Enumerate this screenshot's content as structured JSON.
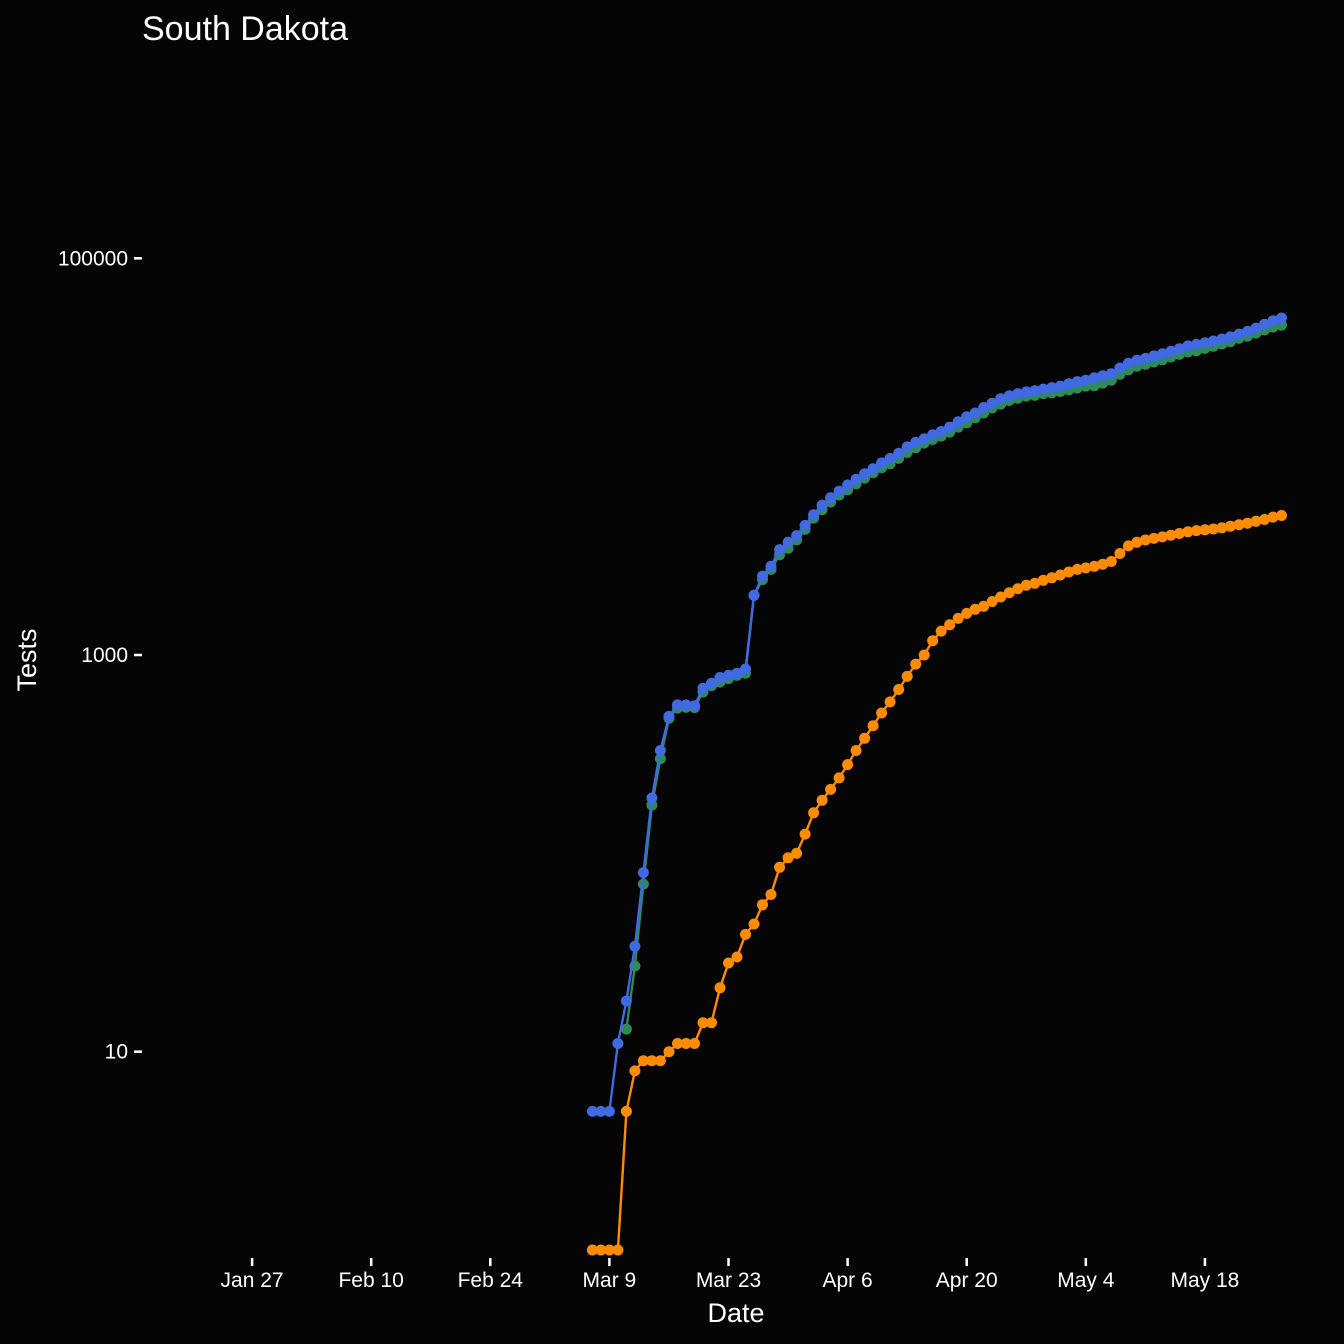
{
  "chart_data": {
    "type": "line",
    "title": "South Dakota",
    "xlabel": "Date",
    "ylabel": "Tests",
    "y_scale": "log",
    "ylim": [
      1,
      1000000
    ],
    "xlim": [
      "2020-01-15",
      "2020-05-28"
    ],
    "grid": false,
    "legend": "none",
    "x_ticks": [
      {
        "date": "2020-01-27",
        "label": "Jan 27"
      },
      {
        "date": "2020-02-10",
        "label": "Feb 10"
      },
      {
        "date": "2020-02-24",
        "label": "Feb 24"
      },
      {
        "date": "2020-03-09",
        "label": "Mar  9"
      },
      {
        "date": "2020-03-23",
        "label": "Mar 23"
      },
      {
        "date": "2020-04-06",
        "label": "Apr  6"
      },
      {
        "date": "2020-04-20",
        "label": "Apr 20"
      },
      {
        "date": "2020-05-04",
        "label": "May  4"
      },
      {
        "date": "2020-05-18",
        "label": "May 18"
      }
    ],
    "y_ticks": [
      {
        "value": 10,
        "label": "10"
      },
      {
        "value": 1000,
        "label": "1000"
      },
      {
        "value": 100000,
        "label": "100000"
      }
    ],
    "series": [
      {
        "color": "#2e8b57",
        "x": [
          "2020-03-11",
          "2020-03-12",
          "2020-03-13",
          "2020-03-14",
          "2020-03-15",
          "2020-03-16",
          "2020-03-17",
          "2020-03-18",
          "2020-03-19",
          "2020-03-20",
          "2020-03-21",
          "2020-03-22",
          "2020-03-23",
          "2020-03-24",
          "2020-03-25",
          "2020-03-26",
          "2020-03-27",
          "2020-03-28",
          "2020-03-29",
          "2020-03-30",
          "2020-03-31",
          "2020-04-01",
          "2020-04-02",
          "2020-04-03",
          "2020-04-04",
          "2020-04-05",
          "2020-04-06",
          "2020-04-07",
          "2020-04-08",
          "2020-04-09",
          "2020-04-10",
          "2020-04-11",
          "2020-04-12",
          "2020-04-13",
          "2020-04-14",
          "2020-04-15",
          "2020-04-16",
          "2020-04-17",
          "2020-04-18",
          "2020-04-19",
          "2020-04-20",
          "2020-04-21",
          "2020-04-22",
          "2020-04-23",
          "2020-04-24",
          "2020-04-25",
          "2020-04-26",
          "2020-04-27",
          "2020-04-28",
          "2020-04-29",
          "2020-04-30",
          "2020-05-01",
          "2020-05-02",
          "2020-05-03",
          "2020-05-04",
          "2020-05-05",
          "2020-05-06",
          "2020-05-07",
          "2020-05-08",
          "2020-05-09",
          "2020-05-10",
          "2020-05-11",
          "2020-05-12",
          "2020-05-13",
          "2020-05-14",
          "2020-05-15",
          "2020-05-16",
          "2020-05-17",
          "2020-05-18",
          "2020-05-19",
          "2020-05-20",
          "2020-05-21",
          "2020-05-22",
          "2020-05-23",
          "2020-05-24",
          "2020-05-25",
          "2020-05-26",
          "2020-05-27"
        ],
        "values": [
          13,
          27,
          70,
          175,
          300,
          480,
          540,
          545,
          543,
          650,
          700,
          730,
          760,
          790,
          810,
          2000,
          2400,
          2700,
          3200,
          3450,
          3800,
          4300,
          4900,
          5400,
          5900,
          6400,
          6800,
          7300,
          7800,
          8300,
          8800,
          9200,
          9800,
          10500,
          11100,
          11700,
          12200,
          12700,
          13300,
          14100,
          14800,
          15700,
          16600,
          17600,
          18400,
          19200,
          19700,
          20200,
          20400,
          20800,
          21000,
          21300,
          21700,
          22200,
          22700,
          22800,
          23500,
          24300,
          26000,
          27400,
          28600,
          29200,
          30000,
          30800,
          31800,
          32800,
          33700,
          34200,
          35200,
          36000,
          37000,
          38000,
          39500,
          40500,
          42000,
          43500,
          45000,
          46000
        ]
      },
      {
        "color": "#4169e1",
        "x": [
          "2020-03-07",
          "2020-03-08",
          "2020-03-09",
          "2020-03-10",
          "2020-03-11",
          "2020-03-12",
          "2020-03-13",
          "2020-03-14",
          "2020-03-15",
          "2020-03-16",
          "2020-03-17",
          "2020-03-18",
          "2020-03-19",
          "2020-03-20",
          "2020-03-21",
          "2020-03-22",
          "2020-03-23",
          "2020-03-24",
          "2020-03-25",
          "2020-03-26",
          "2020-03-27",
          "2020-03-28",
          "2020-03-29",
          "2020-03-30",
          "2020-03-31",
          "2020-04-01",
          "2020-04-02",
          "2020-04-03",
          "2020-04-04",
          "2020-04-05",
          "2020-04-06",
          "2020-04-07",
          "2020-04-08",
          "2020-04-09",
          "2020-04-10",
          "2020-04-11",
          "2020-04-12",
          "2020-04-13",
          "2020-04-14",
          "2020-04-15",
          "2020-04-16",
          "2020-04-17",
          "2020-04-18",
          "2020-04-19",
          "2020-04-20",
          "2020-04-21",
          "2020-04-22",
          "2020-04-23",
          "2020-04-24",
          "2020-04-25",
          "2020-04-26",
          "2020-04-27",
          "2020-04-28",
          "2020-04-29",
          "2020-04-30",
          "2020-05-01",
          "2020-05-02",
          "2020-05-03",
          "2020-05-04",
          "2020-05-05",
          "2020-05-06",
          "2020-05-07",
          "2020-05-08",
          "2020-05-09",
          "2020-05-10",
          "2020-05-11",
          "2020-05-12",
          "2020-05-13",
          "2020-05-14",
          "2020-05-15",
          "2020-05-16",
          "2020-05-17",
          "2020-05-18",
          "2020-05-19",
          "2020-05-20",
          "2020-05-21",
          "2020-05-22",
          "2020-05-23",
          "2020-05-24",
          "2020-05-25",
          "2020-05-26",
          "2020-05-27"
        ],
        "values": [
          5,
          5,
          5,
          11,
          18,
          34,
          80,
          190,
          330,
          490,
          560,
          560,
          555,
          680,
          720,
          770,
          790,
          810,
          850,
          2000,
          2500,
          2800,
          3400,
          3700,
          4000,
          4500,
          5100,
          5700,
          6200,
          6700,
          7200,
          7700,
          8200,
          8700,
          9300,
          9800,
          10400,
          11200,
          11800,
          12300,
          12900,
          13400,
          14100,
          15000,
          15900,
          16600,
          17700,
          18600,
          19600,
          20300,
          20800,
          21200,
          21500,
          21900,
          22300,
          22700,
          23300,
          23900,
          24300,
          25000,
          25600,
          26200,
          28000,
          29600,
          30600,
          31300,
          32200,
          33000,
          34000,
          35000,
          36200,
          36800,
          37500,
          38300,
          39200,
          40200,
          41500,
          42800,
          44500,
          46500,
          48500,
          50000
        ]
      },
      {
        "color": "#ff8c00",
        "x": [
          "2020-03-07",
          "2020-03-08",
          "2020-03-09",
          "2020-03-10",
          "2020-03-11",
          "2020-03-12",
          "2020-03-13",
          "2020-03-14",
          "2020-03-15",
          "2020-03-16",
          "2020-03-17",
          "2020-03-18",
          "2020-03-19",
          "2020-03-20",
          "2020-03-21",
          "2020-03-22",
          "2020-03-23",
          "2020-03-24",
          "2020-03-25",
          "2020-03-26",
          "2020-03-27",
          "2020-03-28",
          "2020-03-29",
          "2020-03-30",
          "2020-03-31",
          "2020-04-01",
          "2020-04-02",
          "2020-04-03",
          "2020-04-04",
          "2020-04-05",
          "2020-04-06",
          "2020-04-07",
          "2020-04-08",
          "2020-04-09",
          "2020-04-10",
          "2020-04-11",
          "2020-04-12",
          "2020-04-13",
          "2020-04-14",
          "2020-04-15",
          "2020-04-16",
          "2020-04-17",
          "2020-04-18",
          "2020-04-19",
          "2020-04-20",
          "2020-04-21",
          "2020-04-22",
          "2020-04-23",
          "2020-04-24",
          "2020-04-25",
          "2020-04-26",
          "2020-04-27",
          "2020-04-28",
          "2020-04-29",
          "2020-04-30",
          "2020-05-01",
          "2020-05-02",
          "2020-05-03",
          "2020-05-04",
          "2020-05-05",
          "2020-05-06",
          "2020-05-07",
          "2020-05-08",
          "2020-05-09",
          "2020-05-10",
          "2020-05-11",
          "2020-05-12",
          "2020-05-13",
          "2020-05-14",
          "2020-05-15",
          "2020-05-16",
          "2020-05-17",
          "2020-05-18",
          "2020-05-19",
          "2020-05-20",
          "2020-05-21",
          "2020-05-22",
          "2020-05-23",
          "2020-05-24",
          "2020-05-25",
          "2020-05-26",
          "2020-05-27"
        ],
        "values": [
          1,
          1,
          1,
          1,
          5,
          8,
          9,
          9,
          9,
          10,
          11,
          11,
          11,
          14,
          14,
          21,
          28,
          30,
          39,
          44,
          55,
          62,
          85,
          95,
          100,
          125,
          160,
          185,
          210,
          240,
          280,
          330,
          380,
          440,
          510,
          580,
          670,
          780,
          900,
          1000,
          1180,
          1320,
          1420,
          1530,
          1620,
          1700,
          1760,
          1860,
          1960,
          2060,
          2160,
          2250,
          2300,
          2380,
          2450,
          2530,
          2620,
          2700,
          2750,
          2800,
          2870,
          2960,
          3250,
          3550,
          3700,
          3800,
          3870,
          3940,
          4020,
          4100,
          4180,
          4240,
          4280,
          4320,
          4380,
          4460,
          4540,
          4620,
          4720,
          4820,
          4960,
          5050
        ]
      }
    ]
  }
}
